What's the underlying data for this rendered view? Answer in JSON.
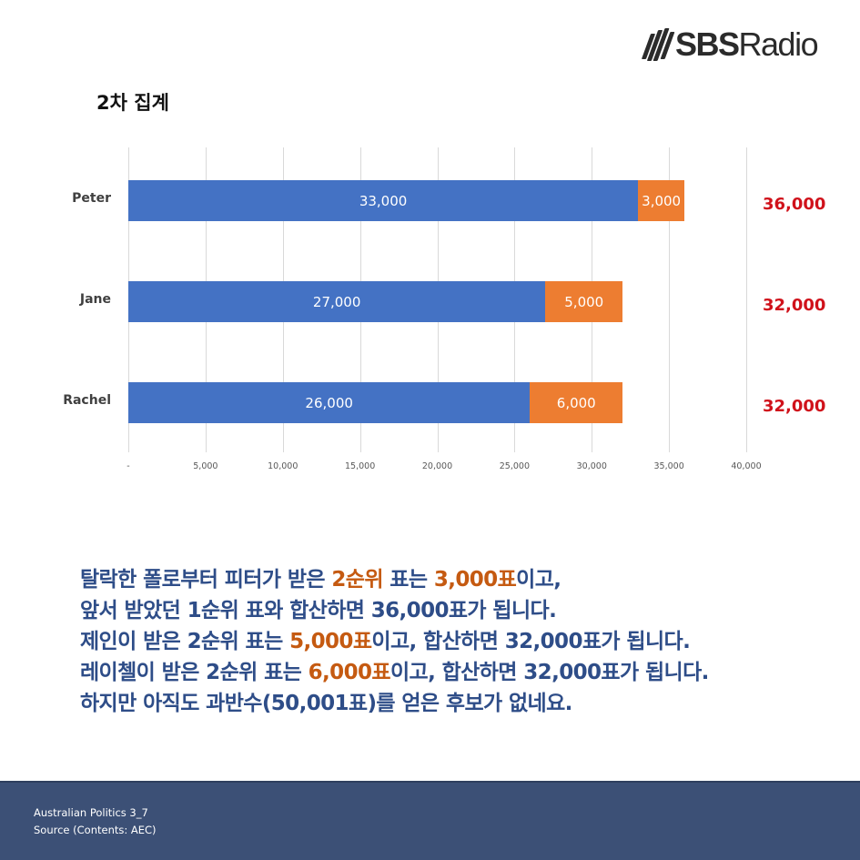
{
  "brand": {
    "logo_bold": "SBS",
    "logo_light": "Radio"
  },
  "chart_data": {
    "type": "bar",
    "orientation": "horizontal",
    "stacked": true,
    "title": "2차 집계",
    "categories": [
      "Peter",
      "Jane",
      "Rachel"
    ],
    "series": [
      {
        "name": "1순위 표",
        "color": "#4472c4",
        "values": [
          33000,
          27000,
          26000
        ],
        "labels": [
          "33,000",
          "27,000",
          "26,000"
        ]
      },
      {
        "name": "2순위 표",
        "color": "#ed7d31",
        "values": [
          3000,
          5000,
          6000
        ],
        "labels": [
          "3,000",
          "5,000",
          "6,000"
        ]
      }
    ],
    "totals": [
      36000,
      32000,
      32000
    ],
    "total_labels": [
      "36,000",
      "32,000",
      "32,000"
    ],
    "total_color": "#d0121b",
    "xlim": [
      0,
      40000
    ],
    "xticks": [
      "-",
      "5,000",
      "10,000",
      "15,000",
      "20,000",
      "25,000",
      "30,000",
      "35,000",
      "40,000"
    ],
    "xlabel": "",
    "ylabel": "",
    "grid": true,
    "legend": "none"
  },
  "caption": {
    "line1_a": "탈락한 폴로부터 피터가 받은 ",
    "line1_hl1": "2순위",
    "line1_b": " 표는 ",
    "line1_hl2": "3,000표",
    "line1_c": "이고,",
    "line2": "앞서 받았던 1순위 표와 합산하면 36,000표가 됩니다.",
    "line3_a": "제인이 받은 2순위 표는 ",
    "line3_hl": "5,000표",
    "line3_b": "이고, 합산하면 32,000표가 됩니다.",
    "line4_a": "레이첼이 받은 2순위 표는 ",
    "line4_hl": "6,000표",
    "line4_b": "이고, 합산하면 32,000표가 됩니다.",
    "line5": "하지만 아직도 과반수(50,001표)를 얻은 후보가 없네요."
  },
  "footer": {
    "series": "Australian Politics 3_7",
    "source": "Source  (Contents: AEC)"
  }
}
